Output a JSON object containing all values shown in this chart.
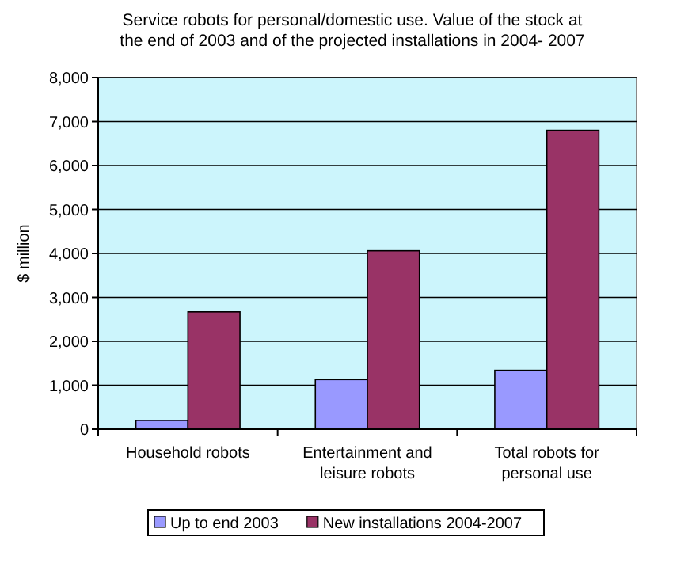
{
  "chart_data": {
    "type": "bar",
    "title": "Service robots for personal/domestic use.  Value of the stock at  the end of 2003 and of the projected installations in 2004- 2007",
    "ylabel": "$ million",
    "categories": [
      "Household robots",
      "Entertainment and leisure robots",
      "Total robots for personal use"
    ],
    "series": [
      {
        "name": "Up to end 2003",
        "color": "#9999ff",
        "values": [
          200,
          1130,
          1340
        ]
      },
      {
        "name": "New installations 2004-2007",
        "color": "#993366",
        "values": [
          2670,
          4060,
          6800
        ]
      }
    ],
    "ylim": [
      0,
      8000
    ],
    "yticks": [
      {
        "value": 0,
        "label": "0"
      },
      {
        "value": 1000,
        "label": "1,000"
      },
      {
        "value": 2000,
        "label": "2,000"
      },
      {
        "value": 3000,
        "label": "3,000"
      },
      {
        "value": 4000,
        "label": "4,000"
      },
      {
        "value": 5000,
        "label": "5,000"
      },
      {
        "value": 6000,
        "label": "6,000"
      },
      {
        "value": 7000,
        "label": "7,000"
      },
      {
        "value": 8000,
        "label": "8,000"
      }
    ],
    "grid": "y",
    "legend": "bottom"
  }
}
